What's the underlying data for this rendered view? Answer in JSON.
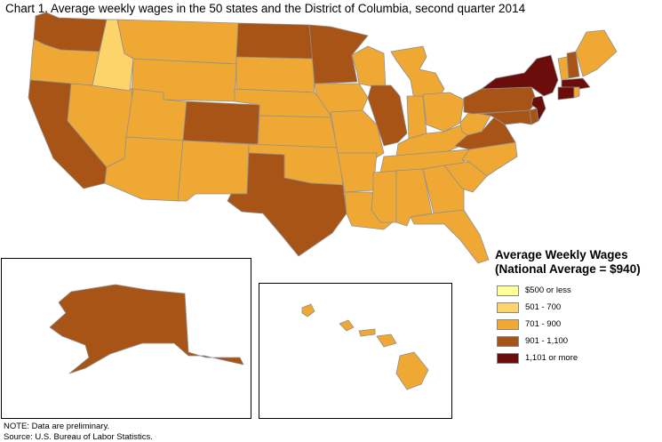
{
  "title": "Chart 1.  Average weekly wages in the 50 states and the District of Columbia, second quarter 2014",
  "legend": {
    "title_line1": "Average Weekly Wages",
    "title_line2": "(National Average = $940)",
    "items": [
      {
        "label": "$500 or less",
        "color": "#ffff99"
      },
      {
        "label": "501 - 700",
        "color": "#fdd46a"
      },
      {
        "label": "701 - 900",
        "color": "#f0a835"
      },
      {
        "label": "901 - 1,100",
        "color": "#a85416"
      },
      {
        "label": "1,101 or more",
        "color": "#6b0d0a"
      }
    ]
  },
  "notes": {
    "note": "NOTE: Data are preliminary.",
    "source": "Source:  U.S. Bureau of Labor Statistics."
  },
  "state_categories": {
    "washington": "901 - 1,100",
    "oregon": "701 - 900",
    "california": "901 - 1,100",
    "nevada": "701 - 900",
    "idaho": "501 - 700",
    "montana": "701 - 900",
    "wyoming": "701 - 900",
    "utah": "701 - 900",
    "arizona": "701 - 900",
    "colorado": "901 - 1,100",
    "new-mexico": "701 - 900",
    "north-dakota": "901 - 1,100",
    "south-dakota": "701 - 900",
    "nebraska": "701 - 900",
    "kansas": "701 - 900",
    "oklahoma": "701 - 900",
    "texas": "901 - 1,100",
    "minnesota": "901 - 1,100",
    "iowa": "701 - 900",
    "missouri": "701 - 900",
    "arkansas": "701 - 900",
    "louisiana": "701 - 900",
    "wisconsin": "701 - 900",
    "illinois": "901 - 1,100",
    "michigan": "701 - 900",
    "indiana": "701 - 900",
    "ohio": "701 - 900",
    "kentucky": "701 - 900",
    "tennessee": "701 - 900",
    "mississippi": "701 - 900",
    "alabama": "701 - 900",
    "georgia": "701 - 900",
    "florida": "701 - 900",
    "south-carolina": "701 - 900",
    "north-carolina": "701 - 900",
    "virginia": "901 - 1,100",
    "west-virginia": "701 - 900",
    "pennsylvania": "901 - 1,100",
    "new-york": "1,101 or more",
    "new-jersey": "1,101 or more",
    "delaware": "901 - 1,100",
    "maryland": "901 - 1,100",
    "connecticut": "1,101 or more",
    "rhode-island": "701 - 900",
    "massachusetts": "1,101 or more",
    "vermont": "701 - 900",
    "new-hampshire": "901 - 1,100",
    "maine": "701 - 900",
    "alaska": "901 - 1,100",
    "hawaii": "701 - 900"
  }
}
